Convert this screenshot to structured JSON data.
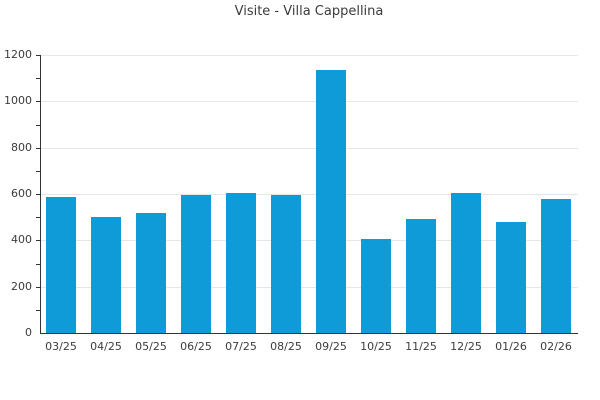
{
  "chart_data": {
    "type": "bar",
    "title": "Visite - Villa Cappellina",
    "categories": [
      "03/25",
      "04/25",
      "05/25",
      "06/25",
      "07/25",
      "08/25",
      "09/25",
      "10/25",
      "11/25",
      "12/25",
      "01/26",
      "02/26"
    ],
    "values": [
      585,
      500,
      520,
      595,
      605,
      595,
      1135,
      405,
      490,
      605,
      480,
      580
    ],
    "xlabel": "",
    "ylabel": "",
    "ylim": [
      0,
      1200
    ],
    "ytick_step": 200,
    "minor_tick_step": 100,
    "grid": "horizontal",
    "legend": "none",
    "colors": {
      "bar": "#0f9bd8",
      "grid": "#e6e6e6",
      "axis": "#333333",
      "text": "#3c3c3c",
      "background": "#ffffff"
    }
  }
}
